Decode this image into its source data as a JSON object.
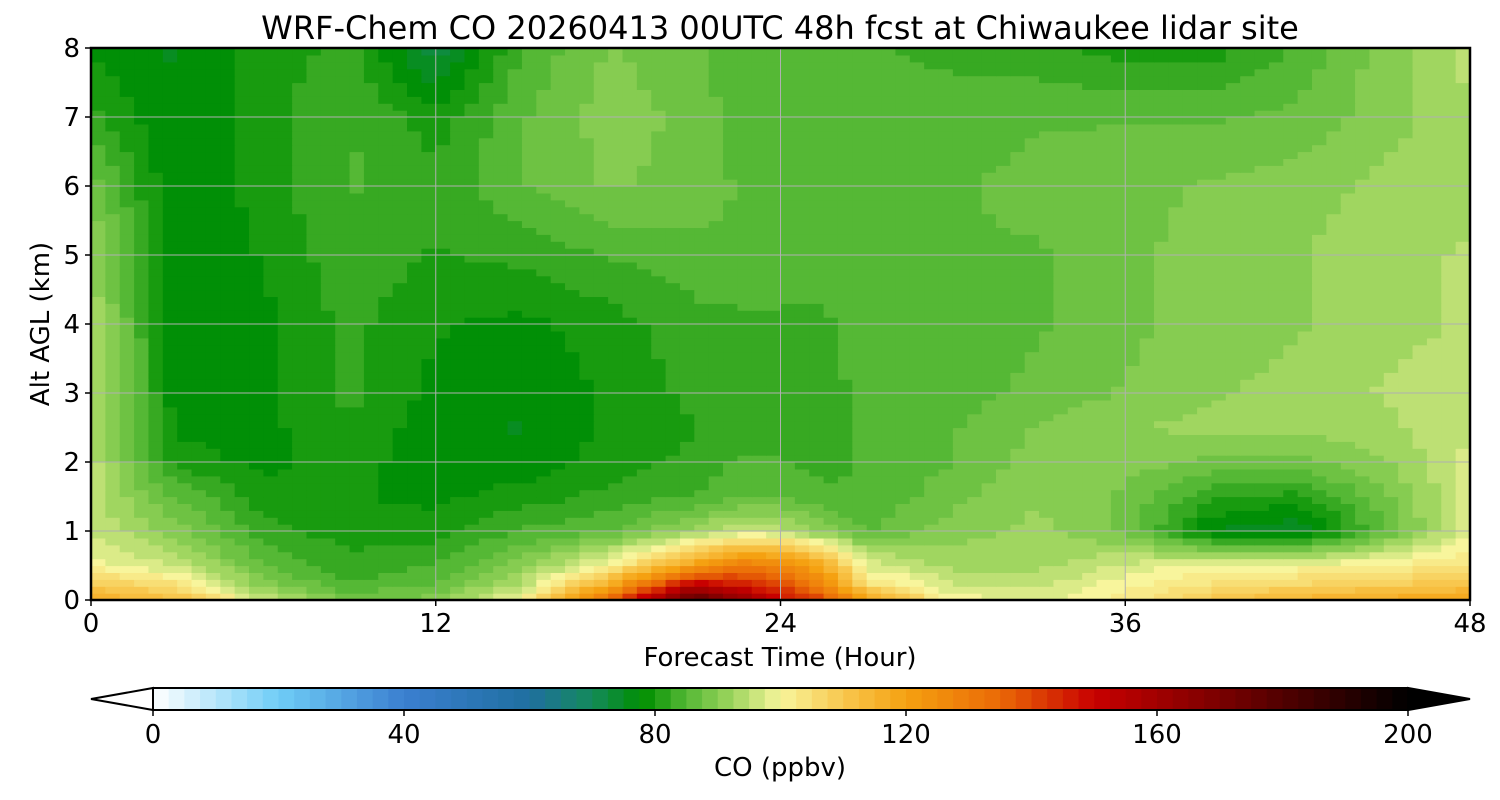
{
  "chart_data": {
    "type": "heatmap",
    "subtype": "filled-contour",
    "title": "WRF-Chem CO  20260413 00UTC 48h fcst at Chiwaukee lidar site",
    "xlabel": "Forecast Time (Hour)",
    "ylabel": "Alt AGL (km)",
    "xlim": [
      0,
      48
    ],
    "ylim": [
      0,
      8
    ],
    "xticks": [
      0,
      12,
      24,
      36,
      48
    ],
    "yticks": [
      0,
      1,
      2,
      3,
      4,
      5,
      6,
      7,
      8
    ],
    "grid": true,
    "x": [
      0,
      3,
      6,
      9,
      12,
      15,
      18,
      21,
      22.5,
      24,
      25.5,
      27,
      30,
      33,
      36,
      39,
      42,
      45,
      48
    ],
    "y": [
      0,
      0.25,
      0.5,
      1,
      1.5,
      2,
      2.5,
      3,
      4,
      5,
      6,
      7,
      8
    ],
    "z": [
      [
        118,
        112,
        96,
        88,
        90,
        100,
        135,
        180,
        165,
        150,
        140,
        120,
        100,
        98,
        102,
        110,
        115,
        118,
        120
      ],
      [
        108,
        104,
        90,
        84,
        86,
        94,
        115,
        150,
        145,
        140,
        125,
        104,
        96,
        95,
        100,
        104,
        106,
        108,
        110
      ],
      [
        100,
        96,
        86,
        82,
        84,
        90,
        100,
        120,
        130,
        128,
        118,
        98,
        93,
        93,
        97,
        100,
        100,
        102,
        104
      ],
      [
        96,
        90,
        82,
        80,
        80,
        84,
        86,
        92,
        96,
        95,
        90,
        86,
        90,
        92,
        88,
        76,
        74,
        86,
        98
      ],
      [
        95,
        86,
        80,
        79,
        78,
        80,
        82,
        84,
        86,
        86,
        84,
        84,
        88,
        91,
        88,
        82,
        80,
        88,
        97
      ],
      [
        95,
        80,
        78,
        80,
        77,
        77,
        80,
        82,
        84,
        84,
        83,
        84,
        86,
        90,
        90,
        88,
        88,
        91,
        97
      ],
      [
        94,
        78,
        78,
        81,
        77,
        76,
        79,
        81,
        83,
        82,
        82,
        85,
        86,
        89,
        91,
        92,
        92,
        93,
        96
      ],
      [
        94,
        77,
        78,
        82,
        78,
        77,
        79,
        82,
        82,
        81,
        82,
        85,
        85,
        87,
        89,
        91,
        92,
        94,
        95
      ],
      [
        93,
        77,
        78,
        82,
        79,
        78,
        80,
        83,
        83,
        83,
        83,
        86,
        85,
        86,
        88,
        90,
        91,
        93,
        94
      ],
      [
        92,
        76,
        79,
        83,
        81,
        82,
        84,
        85,
        86,
        86,
        85,
        86,
        86,
        86,
        88,
        90,
        91,
        93,
        94
      ],
      [
        88,
        76,
        80,
        84,
        82,
        86,
        89,
        88,
        86,
        86,
        86,
        86,
        86,
        87,
        88,
        89,
        90,
        92,
        93
      ],
      [
        82,
        76,
        80,
        84,
        80,
        86,
        90,
        88,
        85,
        85,
        85,
        85,
        85,
        86,
        86,
        86,
        87,
        90,
        93
      ],
      [
        78,
        76,
        80,
        82,
        72,
        84,
        89,
        87,
        84,
        84,
        84,
        84,
        83,
        82,
        80,
        80,
        84,
        90,
        95
      ]
    ],
    "colorbar": {
      "label": "CO  (ppbv)",
      "min": 0,
      "max": 200,
      "ticks": [
        0,
        40,
        80,
        120,
        160,
        200
      ],
      "extend": "both",
      "orientation": "horizontal",
      "colormap_stops": [
        {
          "v": 0,
          "c": "#ffffff"
        },
        {
          "v": 20,
          "c": "#6fcdf6"
        },
        {
          "v": 40,
          "c": "#3b7fd0"
        },
        {
          "v": 60,
          "c": "#1f6fa0"
        },
        {
          "v": 70,
          "c": "#148a5a"
        },
        {
          "v": 78,
          "c": "#008f00"
        },
        {
          "v": 85,
          "c": "#55b835"
        },
        {
          "v": 92,
          "c": "#9ad45c"
        },
        {
          "v": 100,
          "c": "#f8f59c"
        },
        {
          "v": 110,
          "c": "#f8c74e"
        },
        {
          "v": 120,
          "c": "#f5a111"
        },
        {
          "v": 135,
          "c": "#ea6906"
        },
        {
          "v": 150,
          "c": "#c80000"
        },
        {
          "v": 170,
          "c": "#7a0000"
        },
        {
          "v": 200,
          "c": "#000000"
        }
      ]
    }
  }
}
